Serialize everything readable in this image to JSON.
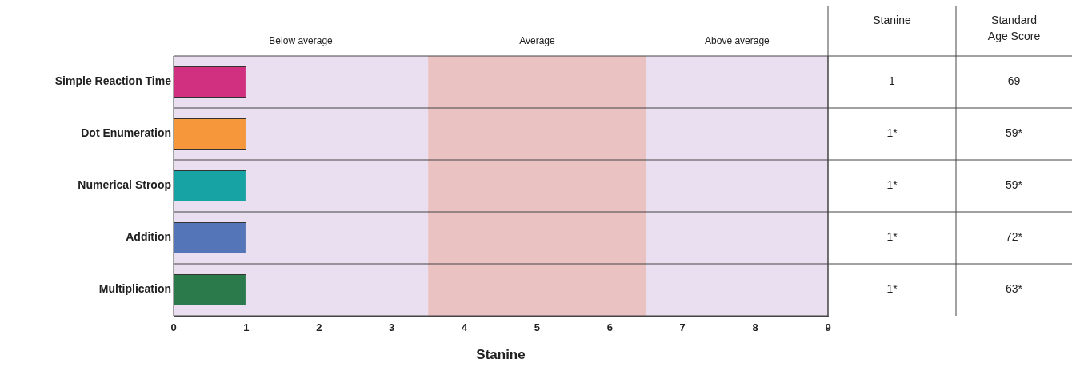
{
  "chart_data": {
    "type": "bar",
    "orientation": "horizontal",
    "xlabel": "Stanine",
    "categories": [
      "Simple Reaction Time",
      "Dot Enumeration",
      "Numerical Stroop",
      "Addition",
      "Multiplication"
    ],
    "values": [
      1,
      1,
      1,
      1,
      1
    ],
    "colors": [
      "#d0307f",
      "#f5973a",
      "#17a3a3",
      "#5476b8",
      "#2b7a4b"
    ],
    "value_labels": [
      "1",
      "1*",
      "1*",
      "1*",
      "1*"
    ],
    "xlim": [
      0,
      9
    ],
    "xticks": [
      0,
      1,
      2,
      3,
      4,
      5,
      6,
      7,
      8,
      9
    ],
    "grid": "y",
    "legend": false,
    "bands": [
      {
        "axis": "x",
        "from": 0,
        "to": 3.5,
        "label": "Below average",
        "color": "#e9dff0"
      },
      {
        "axis": "x",
        "from": 3.5,
        "to": 6.5,
        "label": "Average",
        "color": "#eac2c2"
      },
      {
        "axis": "x",
        "from": 6.5,
        "to": 9,
        "label": "Above average",
        "color": "#e9dff0"
      }
    ],
    "annotations": [
      "Stanine",
      "Standard Age Score",
      "69",
      "59*",
      "59*",
      "72*",
      "63*"
    ]
  }
}
